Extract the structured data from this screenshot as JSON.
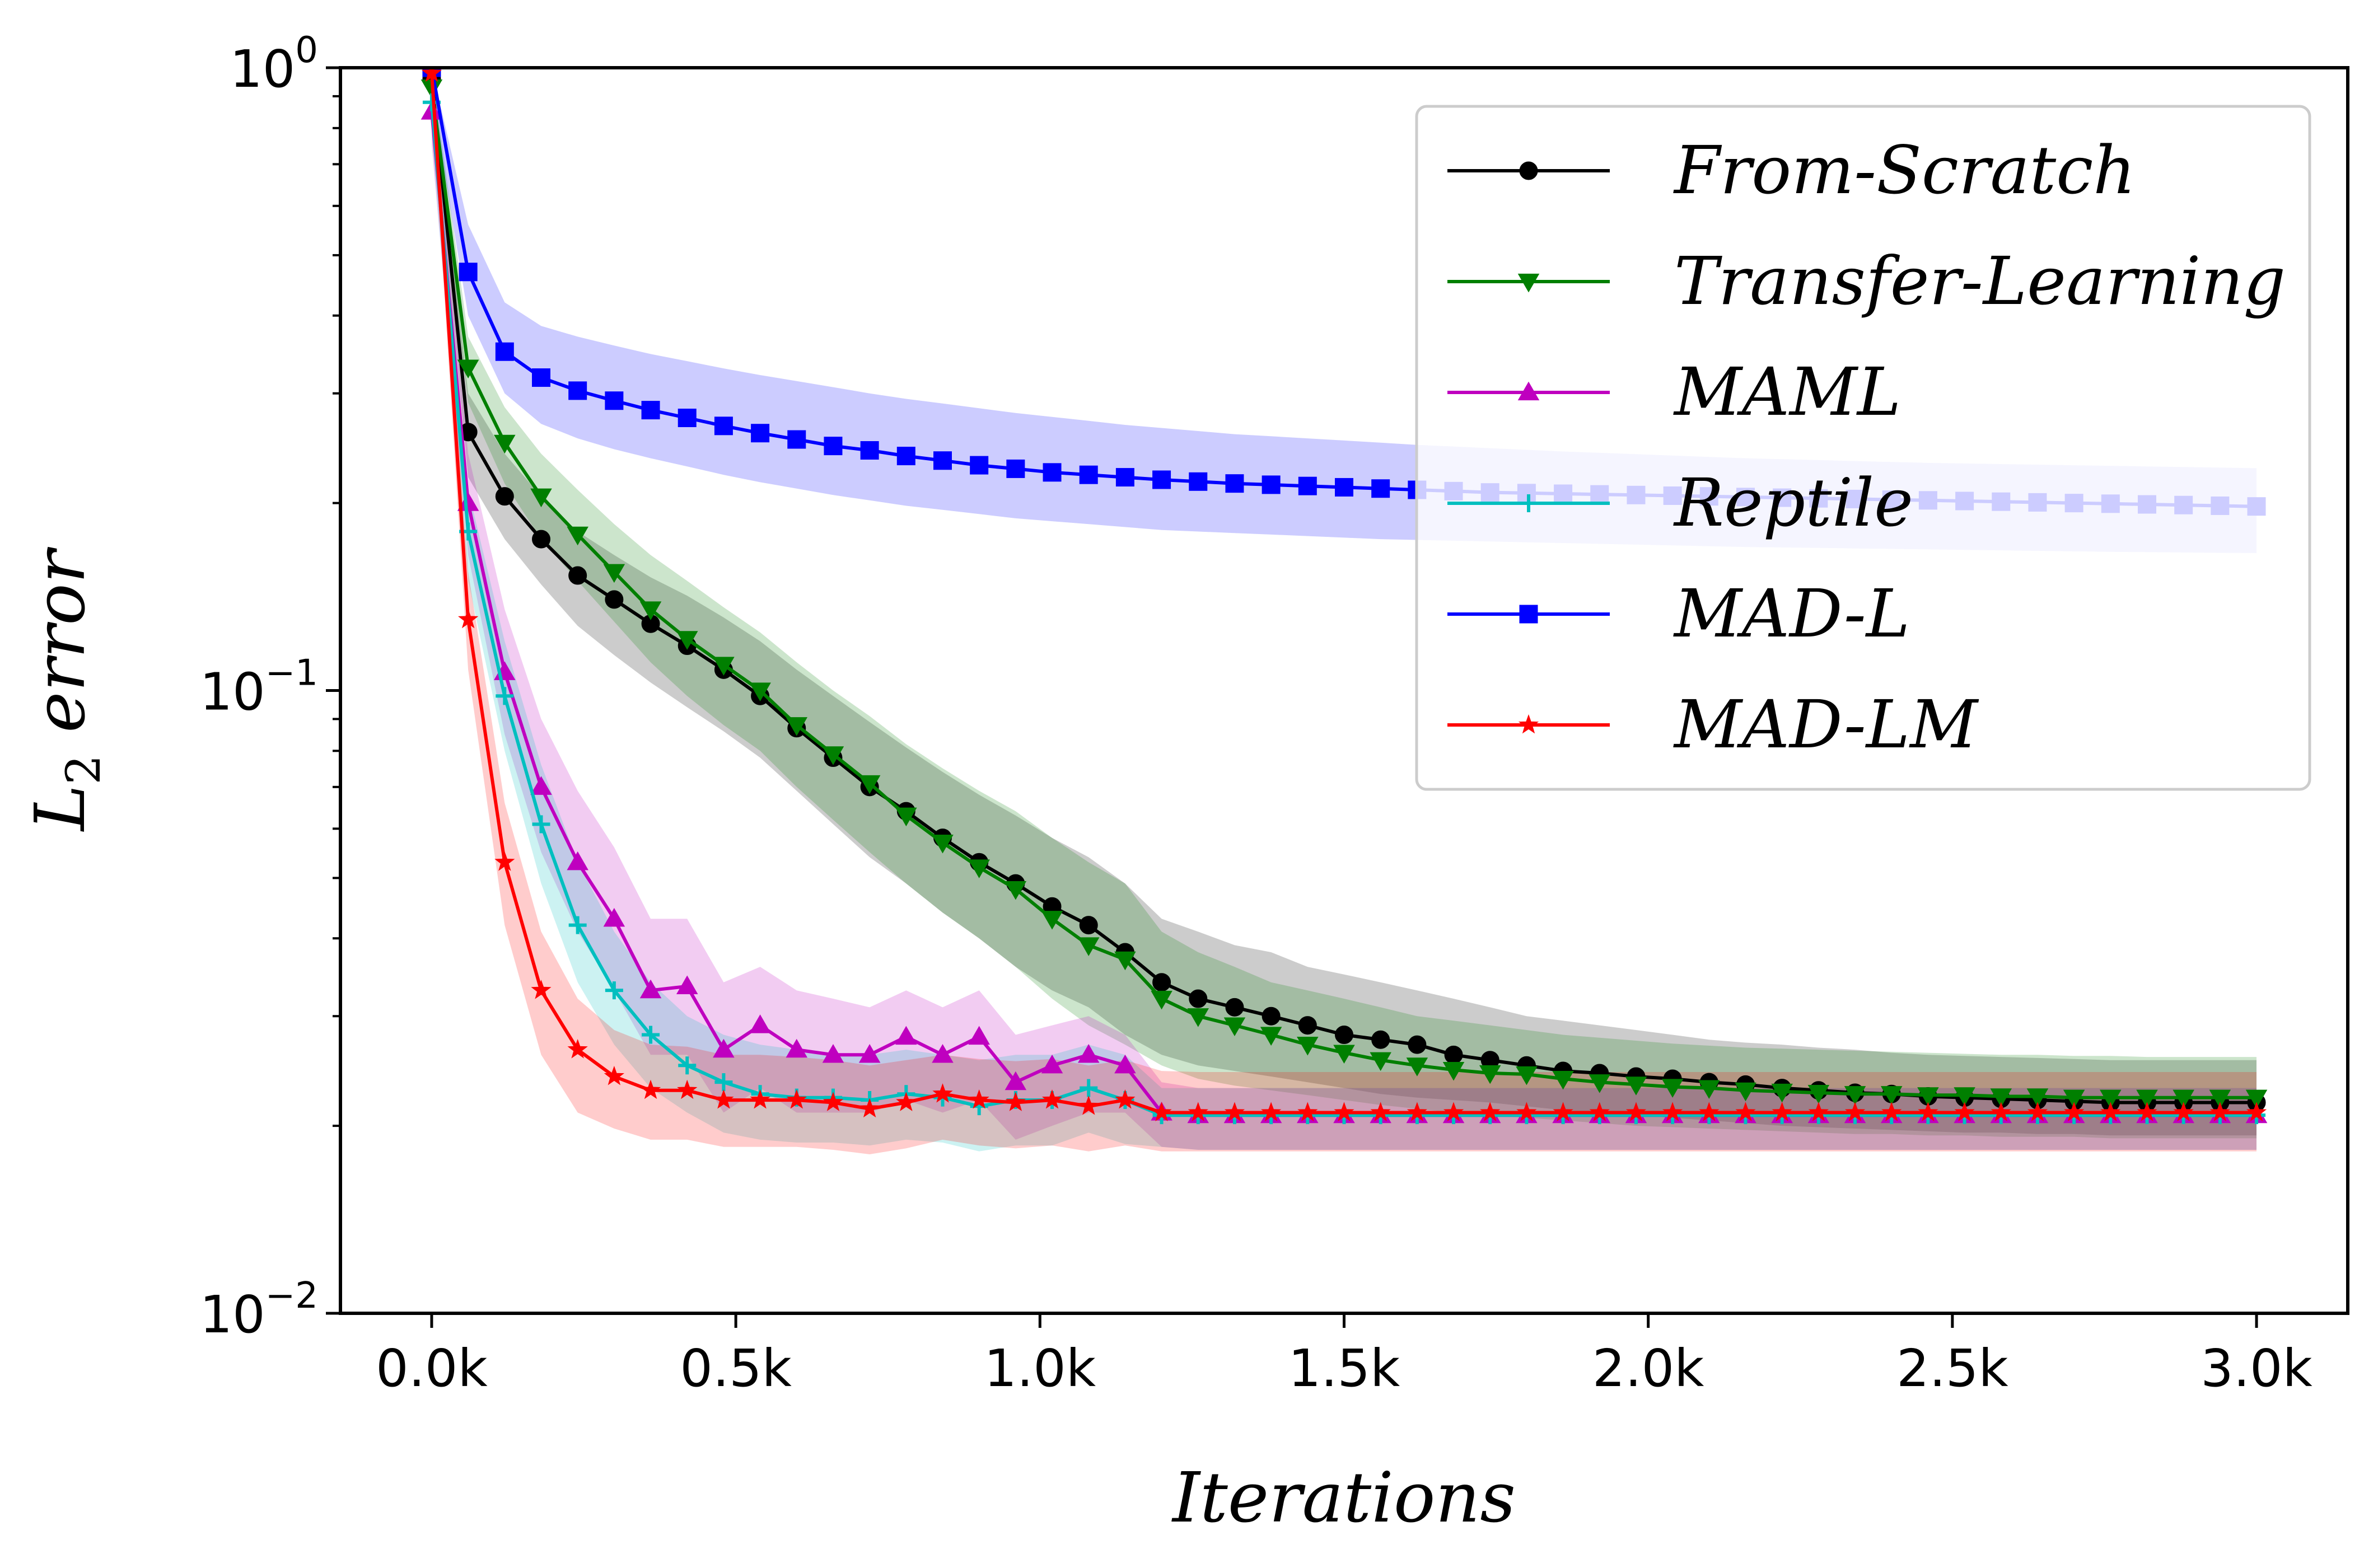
{
  "chart_data": {
    "type": "line",
    "title": "",
    "xlabel": "Iterations",
    "ylabel_base": "L",
    "ylabel_sub": "2",
    "ylabel_rest": " error",
    "yscale": "log",
    "xlim": [
      -150,
      3150
    ],
    "ylim": [
      0.01,
      1.0
    ],
    "xticks": [
      0,
      500,
      1000,
      1500,
      2000,
      2500,
      3000
    ],
    "xtick_labels": [
      "0.0k",
      "0.5k",
      "1.0k",
      "1.5k",
      "2.0k",
      "2.5k",
      "3.0k"
    ],
    "yticks": [
      {
        "value": 1.0,
        "base": "10",
        "exp": "0"
      },
      {
        "value": 0.1,
        "base": "10",
        "exp": "−1"
      },
      {
        "value": 0.01,
        "base": "10",
        "exp": "−2"
      }
    ],
    "legend_position": "upper-right",
    "x": [
      0,
      60,
      120,
      180,
      240,
      300,
      360,
      420,
      480,
      540,
      600,
      660,
      720,
      780,
      840,
      900,
      960,
      1020,
      1080,
      1140,
      1200,
      1260,
      1320,
      1380,
      1440,
      1500,
      1560,
      1620,
      1680,
      1740,
      1800,
      1860,
      1920,
      1980,
      2040,
      2100,
      2160,
      2220,
      2280,
      2340,
      2400,
      2460,
      2520,
      2580,
      2640,
      2700,
      2760,
      2820,
      2880,
      2940,
      3000
    ],
    "series": [
      {
        "name": "From-Scratch",
        "color": "#000000",
        "marker": "circle",
        "values": [
          0.96,
          0.26,
          0.205,
          0.175,
          0.153,
          0.14,
          0.128,
          0.118,
          0.108,
          0.098,
          0.087,
          0.078,
          0.07,
          0.064,
          0.058,
          0.053,
          0.049,
          0.045,
          0.042,
          0.038,
          0.034,
          0.032,
          0.031,
          0.03,
          0.029,
          0.028,
          0.0275,
          0.027,
          0.026,
          0.0255,
          0.025,
          0.0245,
          0.0243,
          0.024,
          0.0238,
          0.0235,
          0.0233,
          0.023,
          0.0228,
          0.0226,
          0.0225,
          0.0223,
          0.0222,
          0.0221,
          0.022,
          0.0219,
          0.0218,
          0.0218,
          0.0218,
          0.0218,
          0.0218
        ],
        "upper": [
          1.0,
          0.3,
          0.24,
          0.205,
          0.18,
          0.165,
          0.152,
          0.142,
          0.131,
          0.12,
          0.108,
          0.098,
          0.089,
          0.081,
          0.074,
          0.068,
          0.063,
          0.058,
          0.054,
          0.049,
          0.043,
          0.041,
          0.039,
          0.038,
          0.036,
          0.035,
          0.034,
          0.033,
          0.032,
          0.031,
          0.03,
          0.0295,
          0.029,
          0.0285,
          0.028,
          0.0275,
          0.0272,
          0.027,
          0.0267,
          0.0265,
          0.0262,
          0.026,
          0.0259,
          0.0258,
          0.0257,
          0.0256,
          0.0255,
          0.0255,
          0.0255,
          0.0255,
          0.0255
        ],
        "lower": [
          0.9,
          0.22,
          0.175,
          0.148,
          0.127,
          0.114,
          0.103,
          0.094,
          0.086,
          0.078,
          0.069,
          0.061,
          0.054,
          0.049,
          0.044,
          0.04,
          0.036,
          0.033,
          0.031,
          0.028,
          0.026,
          0.025,
          0.0245,
          0.024,
          0.0235,
          0.023,
          0.0225,
          0.0222,
          0.022,
          0.0218,
          0.0215,
          0.0212,
          0.021,
          0.0208,
          0.0206,
          0.0204,
          0.0202,
          0.02,
          0.0199,
          0.0198,
          0.0197,
          0.0196,
          0.0195,
          0.0195,
          0.0194,
          0.0194,
          0.0193,
          0.0193,
          0.0193,
          0.0193,
          0.0193
        ]
      },
      {
        "name": "Transfer-Learning",
        "color": "#007f00",
        "marker": "triangle-down",
        "values": [
          0.93,
          0.33,
          0.25,
          0.205,
          0.178,
          0.155,
          0.135,
          0.121,
          0.11,
          0.1,
          0.088,
          0.079,
          0.071,
          0.063,
          0.057,
          0.052,
          0.048,
          0.043,
          0.039,
          0.037,
          0.032,
          0.03,
          0.029,
          0.028,
          0.027,
          0.0262,
          0.0255,
          0.025,
          0.0246,
          0.0243,
          0.0242,
          0.0238,
          0.0235,
          0.0233,
          0.0231,
          0.023,
          0.0228,
          0.0227,
          0.0226,
          0.0225,
          0.0225,
          0.0224,
          0.0224,
          0.0223,
          0.0223,
          0.0222,
          0.0222,
          0.0222,
          0.0222,
          0.0222,
          0.0222
        ],
        "upper": [
          1.0,
          0.37,
          0.285,
          0.24,
          0.21,
          0.185,
          0.165,
          0.15,
          0.136,
          0.124,
          0.111,
          0.1,
          0.091,
          0.082,
          0.075,
          0.069,
          0.064,
          0.058,
          0.053,
          0.049,
          0.041,
          0.038,
          0.036,
          0.034,
          0.033,
          0.032,
          0.031,
          0.03,
          0.0295,
          0.029,
          0.0285,
          0.028,
          0.0277,
          0.0274,
          0.0271,
          0.0269,
          0.0267,
          0.0266,
          0.0265,
          0.0264,
          0.0263,
          0.0262,
          0.0261,
          0.026,
          0.026,
          0.0259,
          0.0259,
          0.0258,
          0.0258,
          0.0258,
          0.0258
        ],
        "lower": [
          0.86,
          0.29,
          0.215,
          0.175,
          0.15,
          0.129,
          0.111,
          0.098,
          0.088,
          0.08,
          0.07,
          0.062,
          0.055,
          0.049,
          0.044,
          0.04,
          0.036,
          0.032,
          0.029,
          0.027,
          0.025,
          0.0238,
          0.0232,
          0.0228,
          0.0224,
          0.022,
          0.0216,
          0.0213,
          0.021,
          0.0208,
          0.0206,
          0.0204,
          0.0202,
          0.02,
          0.0199,
          0.0198,
          0.0197,
          0.0196,
          0.0195,
          0.0194,
          0.0194,
          0.0193,
          0.0193,
          0.0192,
          0.0192,
          0.0192,
          0.0191,
          0.0191,
          0.0191,
          0.0191,
          0.0191
        ]
      },
      {
        "name": "MAML",
        "color": "#bf00bf",
        "marker": "triangle-up",
        "values": [
          0.85,
          0.2,
          0.107,
          0.07,
          0.053,
          0.043,
          0.033,
          0.0335,
          0.0265,
          0.029,
          0.0265,
          0.026,
          0.026,
          0.0278,
          0.026,
          0.0278,
          0.0235,
          0.025,
          0.026,
          0.025,
          0.021,
          0.0208,
          0.0208,
          0.0208,
          0.0208,
          0.0208,
          0.0208,
          0.0208,
          0.0208,
          0.0208,
          0.0208,
          0.0208,
          0.0208,
          0.0208,
          0.0208,
          0.0208,
          0.0208,
          0.0208,
          0.0208,
          0.0208,
          0.0208,
          0.0208,
          0.0208,
          0.0208,
          0.0208,
          0.0208,
          0.0208,
          0.0208,
          0.0208,
          0.0208,
          0.0208
        ],
        "upper": [
          0.95,
          0.24,
          0.135,
          0.09,
          0.069,
          0.056,
          0.043,
          0.043,
          0.034,
          0.036,
          0.033,
          0.032,
          0.031,
          0.033,
          0.031,
          0.033,
          0.028,
          0.029,
          0.03,
          0.028,
          0.0235,
          0.023,
          0.023,
          0.023,
          0.023,
          0.023,
          0.023,
          0.023,
          0.023,
          0.023,
          0.023,
          0.023,
          0.023,
          0.023,
          0.023,
          0.023,
          0.023,
          0.023,
          0.023,
          0.023,
          0.023,
          0.023,
          0.023,
          0.023,
          0.023,
          0.023,
          0.023,
          0.023,
          0.023,
          0.023,
          0.023
        ],
        "lower": [
          0.75,
          0.165,
          0.085,
          0.055,
          0.041,
          0.033,
          0.026,
          0.026,
          0.021,
          0.023,
          0.021,
          0.021,
          0.021,
          0.022,
          0.021,
          0.022,
          0.019,
          0.02,
          0.021,
          0.021,
          0.0185,
          0.0183,
          0.0183,
          0.0183,
          0.0183,
          0.0183,
          0.0183,
          0.0183,
          0.0183,
          0.0183,
          0.0183,
          0.0183,
          0.0183,
          0.0183,
          0.0183,
          0.0183,
          0.0183,
          0.0183,
          0.0183,
          0.0183,
          0.0183,
          0.0183,
          0.0183,
          0.0183,
          0.0183,
          0.0183,
          0.0183,
          0.0183,
          0.0183,
          0.0183,
          0.0183
        ]
      },
      {
        "name": "Reptile",
        "color": "#00bfbf",
        "marker": "plus",
        "values": [
          0.88,
          0.18,
          0.098,
          0.061,
          0.042,
          0.033,
          0.028,
          0.025,
          0.0235,
          0.0225,
          0.0222,
          0.0222,
          0.022,
          0.0225,
          0.0222,
          0.0215,
          0.022,
          0.022,
          0.023,
          0.022,
          0.0208,
          0.0208,
          0.0208,
          0.0208,
          0.0208,
          0.0208,
          0.0208,
          0.0208,
          0.0208,
          0.0208,
          0.0208,
          0.0208,
          0.0208,
          0.0208,
          0.0208,
          0.0208,
          0.0208,
          0.0208,
          0.0208,
          0.0208,
          0.0208,
          0.0208,
          0.0208,
          0.0208,
          0.0208,
          0.0208,
          0.0208,
          0.0208,
          0.0208,
          0.0208,
          0.0208
        ],
        "upper": [
          0.98,
          0.21,
          0.12,
          0.076,
          0.053,
          0.041,
          0.034,
          0.03,
          0.028,
          0.027,
          0.0265,
          0.026,
          0.026,
          0.0265,
          0.026,
          0.0255,
          0.026,
          0.026,
          0.027,
          0.026,
          0.023,
          0.023,
          0.023,
          0.023,
          0.023,
          0.023,
          0.023,
          0.023,
          0.023,
          0.023,
          0.023,
          0.023,
          0.023,
          0.023,
          0.023,
          0.023,
          0.023,
          0.023,
          0.023,
          0.023,
          0.023,
          0.023,
          0.023,
          0.023,
          0.023,
          0.023,
          0.023,
          0.023,
          0.023,
          0.023,
          0.023
        ],
        "lower": [
          0.78,
          0.15,
          0.08,
          0.049,
          0.034,
          0.027,
          0.023,
          0.021,
          0.0195,
          0.019,
          0.0188,
          0.0188,
          0.0186,
          0.019,
          0.0188,
          0.0182,
          0.0186,
          0.0186,
          0.0195,
          0.0187,
          0.0185,
          0.0183,
          0.0183,
          0.0183,
          0.0183,
          0.0183,
          0.0183,
          0.0183,
          0.0183,
          0.0183,
          0.0183,
          0.0183,
          0.0183,
          0.0183,
          0.0183,
          0.0183,
          0.0183,
          0.0183,
          0.0183,
          0.0183,
          0.0183,
          0.0183,
          0.0183,
          0.0183,
          0.0183,
          0.0183,
          0.0183,
          0.0183,
          0.0183,
          0.0183,
          0.0183
        ]
      },
      {
        "name": "MAD-L",
        "color": "#0000ff",
        "marker": "square",
        "values": [
          1.0,
          0.47,
          0.35,
          0.318,
          0.303,
          0.292,
          0.282,
          0.274,
          0.266,
          0.259,
          0.253,
          0.247,
          0.243,
          0.238,
          0.234,
          0.23,
          0.227,
          0.224,
          0.222,
          0.22,
          0.218,
          0.2165,
          0.215,
          0.214,
          0.213,
          0.212,
          0.211,
          0.21,
          0.209,
          0.208,
          0.2075,
          0.207,
          0.2065,
          0.206,
          0.2055,
          0.205,
          0.2045,
          0.204,
          0.2035,
          0.203,
          0.2025,
          0.202,
          0.2015,
          0.201,
          0.2005,
          0.2,
          0.1995,
          0.199,
          0.1985,
          0.198,
          0.1975
        ],
        "upper": [
          1.0,
          0.56,
          0.42,
          0.385,
          0.37,
          0.358,
          0.347,
          0.338,
          0.329,
          0.321,
          0.314,
          0.307,
          0.3,
          0.294,
          0.289,
          0.284,
          0.279,
          0.275,
          0.271,
          0.267,
          0.264,
          0.261,
          0.258,
          0.256,
          0.254,
          0.252,
          0.25,
          0.248,
          0.2465,
          0.245,
          0.2435,
          0.242,
          0.2408,
          0.2396,
          0.2384,
          0.2372,
          0.236,
          0.2352,
          0.2344,
          0.2336,
          0.2328,
          0.232,
          0.2315,
          0.231,
          0.2305,
          0.23,
          0.2295,
          0.229,
          0.2285,
          0.228,
          0.2275
        ],
        "lower": [
          0.9,
          0.4,
          0.3,
          0.268,
          0.254,
          0.244,
          0.236,
          0.229,
          0.222,
          0.216,
          0.211,
          0.206,
          0.202,
          0.198,
          0.195,
          0.192,
          0.189,
          0.187,
          0.185,
          0.183,
          0.181,
          0.18,
          0.179,
          0.178,
          0.177,
          0.176,
          0.175,
          0.1745,
          0.174,
          0.1735,
          0.173,
          0.1725,
          0.172,
          0.1715,
          0.171,
          0.1705,
          0.17,
          0.1697,
          0.1694,
          0.1691,
          0.1688,
          0.1685,
          0.1682,
          0.1679,
          0.1676,
          0.1673,
          0.167,
          0.1668,
          0.1666,
          0.1664,
          0.1662
        ]
      },
      {
        "name": "MAD-LM",
        "color": "#ff0000",
        "marker": "star",
        "values": [
          0.98,
          0.13,
          0.053,
          0.033,
          0.0265,
          0.024,
          0.0228,
          0.0228,
          0.022,
          0.022,
          0.022,
          0.0218,
          0.0213,
          0.0218,
          0.0225,
          0.022,
          0.0218,
          0.022,
          0.0215,
          0.022,
          0.021,
          0.021,
          0.021,
          0.021,
          0.021,
          0.021,
          0.021,
          0.021,
          0.021,
          0.021,
          0.021,
          0.021,
          0.021,
          0.021,
          0.021,
          0.021,
          0.021,
          0.021,
          0.021,
          0.021,
          0.021,
          0.021,
          0.021,
          0.021,
          0.021,
          0.021,
          0.021,
          0.021,
          0.021,
          0.021,
          0.021
        ],
        "upper": [
          1.0,
          0.155,
          0.066,
          0.041,
          0.032,
          0.0285,
          0.027,
          0.0268,
          0.026,
          0.026,
          0.0258,
          0.0255,
          0.025,
          0.0255,
          0.026,
          0.0256,
          0.0254,
          0.0256,
          0.025,
          0.0255,
          0.0245,
          0.0244,
          0.0244,
          0.0244,
          0.0244,
          0.0244,
          0.0244,
          0.0244,
          0.0244,
          0.0244,
          0.0244,
          0.0244,
          0.0244,
          0.0244,
          0.0244,
          0.0244,
          0.0244,
          0.0244,
          0.0244,
          0.0244,
          0.0244,
          0.0244,
          0.0244,
          0.0244,
          0.0244,
          0.0244,
          0.0244,
          0.0244,
          0.0244,
          0.0244,
          0.0244
        ],
        "lower": [
          0.9,
          0.108,
          0.042,
          0.026,
          0.021,
          0.0198,
          0.019,
          0.019,
          0.0185,
          0.0185,
          0.0185,
          0.0183,
          0.018,
          0.0184,
          0.019,
          0.0186,
          0.0184,
          0.0186,
          0.0182,
          0.0186,
          0.0182,
          0.0182,
          0.0182,
          0.0182,
          0.0182,
          0.0182,
          0.0182,
          0.0182,
          0.0182,
          0.0182,
          0.0182,
          0.0182,
          0.0182,
          0.0182,
          0.0182,
          0.0182,
          0.0182,
          0.0182,
          0.0182,
          0.0182,
          0.0182,
          0.0182,
          0.0182,
          0.0182,
          0.0182,
          0.0182,
          0.0182,
          0.0182,
          0.0182,
          0.0182,
          0.0182
        ]
      }
    ]
  }
}
